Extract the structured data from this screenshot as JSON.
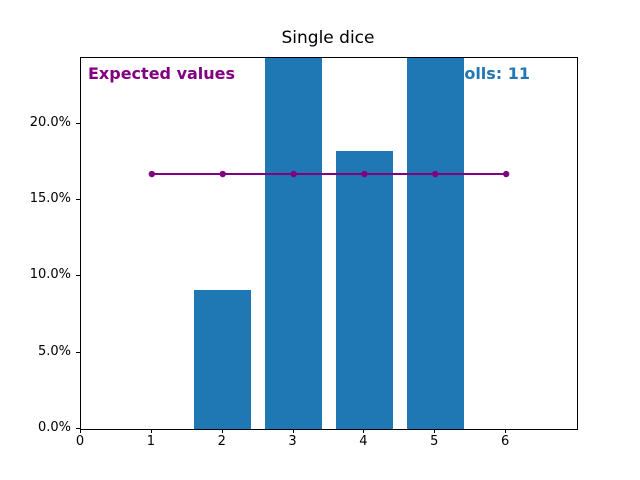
{
  "figure": {
    "background_color": "#ffffff"
  },
  "chart_data": {
    "type": "bar",
    "title": "Single dice",
    "xlabel": "",
    "ylabel": "",
    "grid": "off",
    "legend": "none",
    "x": [
      1,
      2,
      3,
      4,
      5,
      6
    ],
    "bar_values_percent": [
      0,
      9.1,
      36.4,
      18.2,
      36.4,
      0
    ],
    "bar_color": "#1f77b4",
    "bar_width_units": 0.8,
    "bars_clipped_at_top": [
      3,
      5
    ],
    "xlim": [
      0,
      7
    ],
    "ylim_percent": [
      0,
      24.3
    ],
    "xtick_values": [
      0,
      1,
      2,
      3,
      4,
      5,
      6
    ],
    "xtick_labels": [
      "0",
      "1",
      "2",
      "3",
      "4",
      "5",
      "6"
    ],
    "ytick_values": [
      0,
      5,
      10,
      15,
      20
    ],
    "ytick_labels": [
      "0.0%",
      "5.0%",
      "10.0%",
      "15.0%",
      "20.0%"
    ],
    "expected_line": {
      "x": [
        1,
        2,
        3,
        4,
        5,
        6
      ],
      "y_percent": [
        16.7,
        16.7,
        16.7,
        16.7,
        16.7,
        16.7
      ],
      "color": "#800080",
      "marker": "circle",
      "line_width": 2,
      "marker_radius": 3.2
    }
  },
  "annotations": {
    "expected_label": {
      "text": "Expected values",
      "color": "#800080"
    },
    "rolls_label": {
      "text": "Rolls: 11",
      "visible_text": "olls: 11",
      "color": "#1f77b4"
    }
  }
}
